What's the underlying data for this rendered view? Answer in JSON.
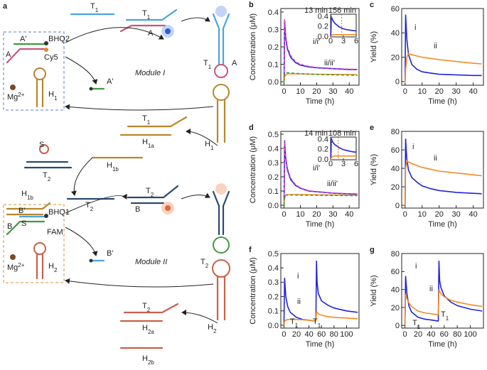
{
  "diagram": {
    "panel": "a",
    "labels": [
      {
        "text": "T",
        "sub": "1"
      },
      {
        "text": "T",
        "sub": "1"
      },
      {
        "text": "A"
      },
      {
        "text": "A'"
      },
      {
        "text": "BHQ2"
      },
      {
        "text": "A"
      },
      {
        "text": "Cy5"
      },
      {
        "text": "H",
        "sub": "1"
      },
      {
        "text": "Mg",
        "sup": "2+"
      },
      {
        "text": "A'"
      },
      {
        "text": "Module I"
      },
      {
        "text": "T",
        "sub": "1"
      },
      {
        "text": "A"
      },
      {
        "text": "H",
        "sub": "1"
      },
      {
        "text": "T",
        "sub": "1"
      },
      {
        "text": "H",
        "sub": "1a"
      },
      {
        "text": "S"
      },
      {
        "text": "T",
        "sub": "2"
      },
      {
        "text": "H",
        "sub": "1b"
      },
      {
        "text": "H",
        "sub": "1b"
      },
      {
        "text": "S"
      },
      {
        "text": "T",
        "sub": "2"
      },
      {
        "text": "T",
        "sub": "2"
      },
      {
        "text": "B"
      },
      {
        "text": "B'"
      },
      {
        "text": "BHQ1"
      },
      {
        "text": "FAM"
      },
      {
        "text": "B"
      },
      {
        "text": "H",
        "sub": "2"
      },
      {
        "text": "Mg",
        "sup": "2+"
      },
      {
        "text": "B'"
      },
      {
        "text": "Module II"
      },
      {
        "text": "T",
        "sub": "2"
      },
      {
        "text": "H",
        "sub": "2"
      },
      {
        "text": "T",
        "sub": "2"
      },
      {
        "text": "H",
        "sub": "2a"
      },
      {
        "text": "H",
        "sub": "2b"
      }
    ]
  },
  "chart_data": [
    {
      "type": "line",
      "panel": "b",
      "ylabel": "Concentration (μM)",
      "xlabel": "Time (h)",
      "xlim": [
        -2,
        46
      ],
      "ylim": [
        -0.02,
        0.42
      ],
      "xticks": [
        0,
        10,
        20,
        30,
        40
      ],
      "yticks": [
        0.0,
        0.1,
        0.2,
        0.3,
        0.4
      ],
      "x": [
        0,
        0.3,
        1,
        2,
        4,
        7,
        10,
        15,
        20,
        30,
        40,
        45
      ],
      "series": [
        {
          "color": "#2323d8",
          "values": [
            0,
            0.35,
            0.25,
            0.19,
            0.14,
            0.11,
            0.095,
            0.085,
            0.08,
            0.075,
            0.07,
            0.07
          ]
        },
        {
          "color": "#d63cc8",
          "dash": true,
          "values": [
            0,
            0.36,
            0.26,
            0.2,
            0.15,
            0.115,
            0.1,
            0.088,
            0.082,
            0.076,
            0.072,
            0.071
          ]
        },
        {
          "color": "#f58a1f",
          "values": [
            0,
            0.03,
            0.04,
            0.045,
            0.045,
            0.045,
            0.045,
            0.044,
            0.043,
            0.042,
            0.041,
            0.04
          ]
        },
        {
          "color": "#3f9a3f",
          "dash": true,
          "values": [
            0,
            0.04,
            0.05,
            0.052,
            0.05,
            0.048,
            0.046,
            0.044,
            0.042,
            0.04,
            0.038,
            0.037
          ]
        }
      ],
      "annotations": [
        {
          "text": "i/i'"
        },
        {
          "text": "ii/ii'"
        }
      ],
      "inset": {
        "xlim": [
          0,
          6
        ],
        "ylim": [
          0,
          0.45
        ],
        "xticks": [
          0,
          3,
          6
        ],
        "yticks": [
          0.0,
          0.2,
          0.4
        ],
        "x": [
          0,
          0.2,
          0.5,
          1,
          2,
          3,
          4,
          5,
          6
        ],
        "series": [
          {
            "color": "#2323d8",
            "values": [
              0,
              0.4,
              0.33,
              0.27,
              0.2,
              0.16,
              0.14,
              0.13,
              0.12
            ]
          },
          {
            "color": "#f58a1f",
            "values": [
              0,
              0.03,
              0.04,
              0.045,
              0.045,
              0.045,
              0.045,
              0.045,
              0.045
            ]
          }
        ],
        "vlines": [
          {
            "value": 0.217,
            "label": "13 min"
          },
          {
            "value": 2.6,
            "label": "156 min"
          }
        ]
      }
    },
    {
      "type": "line",
      "panel": "c",
      "ylabel": "Yield (%)",
      "xlabel": "Time (h)",
      "xlim": [
        -2,
        46
      ],
      "ylim": [
        -3,
        60
      ],
      "xticks": [
        0,
        10,
        20,
        30,
        40
      ],
      "yticks": [
        0,
        20,
        40,
        60
      ],
      "x": [
        0,
        0.3,
        1,
        2,
        4,
        7,
        10,
        15,
        20,
        30,
        40,
        45
      ],
      "series": [
        {
          "color": "#2323d8",
          "values": [
            0,
            55,
            35,
            22,
            14,
            10,
            8,
            7,
            6,
            5.5,
            5,
            5
          ]
        },
        {
          "color": "#f58a1f",
          "values": [
            0,
            10,
            20,
            23,
            22,
            21,
            20,
            19,
            18,
            16.5,
            15,
            14.5
          ]
        }
      ],
      "annotations": [
        {
          "text": "i"
        },
        {
          "text": "ii"
        }
      ]
    },
    {
      "type": "line",
      "panel": "d",
      "ylabel": "Concentration (μM)",
      "xlabel": "Time (h)",
      "xlim": [
        -2,
        46
      ],
      "ylim": [
        -0.02,
        0.52
      ],
      "xticks": [
        0,
        10,
        20,
        30,
        40
      ],
      "yticks": [
        0.0,
        0.1,
        0.2,
        0.3,
        0.4,
        0.5
      ],
      "x": [
        0,
        0.3,
        1,
        2,
        4,
        7,
        10,
        15,
        20,
        30,
        40,
        45
      ],
      "series": [
        {
          "color": "#2323d8",
          "values": [
            0,
            0.45,
            0.33,
            0.25,
            0.18,
            0.14,
            0.12,
            0.1,
            0.095,
            0.085,
            0.08,
            0.078
          ]
        },
        {
          "color": "#d63cc8",
          "dash": true,
          "values": [
            0,
            0.46,
            0.34,
            0.26,
            0.19,
            0.145,
            0.122,
            0.102,
            0.096,
            0.086,
            0.081,
            0.079
          ]
        },
        {
          "color": "#f58a1f",
          "values": [
            0,
            0.05,
            0.07,
            0.075,
            0.075,
            0.075,
            0.075,
            0.074,
            0.073,
            0.072,
            0.071,
            0.07
          ]
        },
        {
          "color": "#3f9a3f",
          "dash": true,
          "values": [
            0,
            0.06,
            0.07,
            0.072,
            0.072,
            0.072,
            0.071,
            0.07,
            0.07,
            0.069,
            0.068,
            0.068
          ]
        }
      ],
      "annotations": [
        {
          "text": "i/i'"
        },
        {
          "text": "ii/ii'"
        }
      ],
      "inset": {
        "xlim": [
          0,
          6
        ],
        "ylim": [
          0,
          0.45
        ],
        "xticks": [
          0,
          3,
          6
        ],
        "yticks": [
          0.0,
          0.2,
          0.4
        ],
        "x": [
          0,
          0.2,
          0.5,
          1,
          2,
          3,
          4,
          5,
          6
        ],
        "series": [
          {
            "color": "#2323d8",
            "values": [
              0,
              0.42,
              0.35,
              0.3,
              0.24,
              0.2,
              0.18,
              0.16,
              0.15
            ]
          },
          {
            "color": "#f58a1f",
            "values": [
              0,
              0.05,
              0.07,
              0.075,
              0.075,
              0.075,
              0.075,
              0.075,
              0.075
            ]
          }
        ],
        "vlines": [
          {
            "value": 0.233,
            "label": "14 min"
          },
          {
            "value": 1.8,
            "label": "108 min"
          }
        ]
      }
    },
    {
      "type": "line",
      "panel": "e",
      "ylabel": "Yield (%)",
      "xlabel": "Time (h)",
      "xlim": [
        -2,
        46
      ],
      "ylim": [
        -3,
        80
      ],
      "xticks": [
        0,
        10,
        20,
        30,
        40
      ],
      "yticks": [
        0,
        20,
        40,
        60,
        80
      ],
      "x": [
        0,
        0.3,
        1,
        2,
        4,
        7,
        10,
        15,
        20,
        30,
        40,
        45
      ],
      "series": [
        {
          "color": "#2323d8",
          "values": [
            0,
            72,
            50,
            38,
            30,
            25,
            21,
            18,
            16,
            14,
            13,
            12.5
          ]
        },
        {
          "color": "#f58a1f",
          "values": [
            0,
            40,
            48,
            47,
            45,
            43,
            41,
            39,
            37,
            35,
            33,
            32
          ]
        }
      ],
      "annotations": [
        {
          "text": "i"
        },
        {
          "text": "ii"
        }
      ]
    },
    {
      "type": "line",
      "panel": "f",
      "ylabel": "Concentration (μM)",
      "xlabel": "Time (h)",
      "xlim": [
        -5,
        120
      ],
      "ylim": [
        -0.02,
        0.5
      ],
      "xticks": [
        0,
        20,
        40,
        60,
        80,
        100
      ],
      "yticks": [
        0.0,
        0.1,
        0.2,
        0.3,
        0.4,
        0.5
      ],
      "x": [
        0,
        1,
        3,
        6,
        10,
        20,
        30,
        40,
        50,
        51,
        52,
        53,
        55,
        60,
        70,
        80,
        100,
        118
      ],
      "series": [
        {
          "color": "#2323d8",
          "values": [
            0,
            0.33,
            0.2,
            0.13,
            0.09,
            0.055,
            0.04,
            0.035,
            0.03,
            0.03,
            0.45,
            0.3,
            0.22,
            0.17,
            0.14,
            0.12,
            0.1,
            0.09
          ]
        },
        {
          "color": "#f58a1f",
          "values": [
            0,
            0.03,
            0.035,
            0.04,
            0.04,
            0.04,
            0.038,
            0.035,
            0.03,
            0.03,
            0.1,
            0.09,
            0.08,
            0.07,
            0.06,
            0.055,
            0.05,
            0.045
          ]
        }
      ],
      "annotations": [
        {
          "text": "i"
        },
        {
          "text": "ii"
        },
        {
          "text": "T",
          "sub": "1"
        },
        {
          "text": "T",
          "sub": "1"
        }
      ]
    },
    {
      "type": "line",
      "panel": "g",
      "ylabel": "Yield (%)",
      "xlabel": "Time (h)",
      "xlim": [
        -5,
        120
      ],
      "ylim": [
        -3,
        80
      ],
      "xticks": [
        0,
        20,
        40,
        60,
        80,
        100
      ],
      "yticks": [
        0,
        20,
        40,
        60,
        80
      ],
      "x": [
        0,
        1,
        3,
        6,
        10,
        20,
        30,
        40,
        50,
        51,
        52,
        53,
        55,
        60,
        70,
        80,
        100,
        118
      ],
      "series": [
        {
          "color": "#2323d8",
          "values": [
            0,
            55,
            35,
            22,
            15,
            9,
            7,
            6,
            5,
            5,
            72,
            50,
            42,
            33,
            26,
            22,
            18,
            16
          ]
        },
        {
          "color": "#f58a1f",
          "values": [
            0,
            35,
            30,
            25,
            21,
            16,
            14,
            13,
            12,
            12,
            40,
            38,
            35,
            32,
            28,
            26,
            23,
            21
          ]
        }
      ],
      "annotations": [
        {
          "text": "i"
        },
        {
          "text": "ii"
        },
        {
          "text": "T",
          "sub": "1"
        },
        {
          "text": "T",
          "sub": "1"
        }
      ]
    }
  ]
}
